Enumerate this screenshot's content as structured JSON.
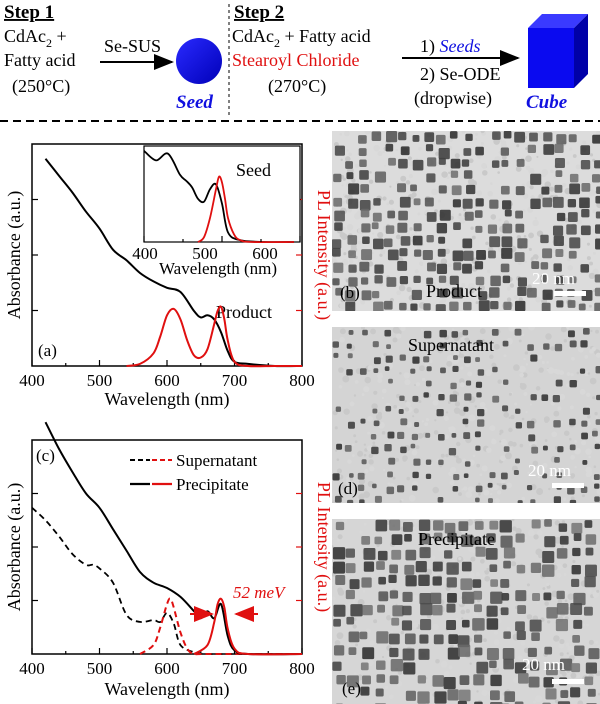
{
  "scheme": {
    "step1": {
      "title": "Step 1",
      "reagent_line1": "CdAc",
      "reagent_sub": "2",
      "reagent_plus": " +",
      "reagent_line2": "Fatty acid",
      "temperature": "(250°C)",
      "arrow_label": "Se-SUS",
      "product_label": "Seed",
      "product_color": "#1010e0"
    },
    "step2": {
      "title": "Step 2",
      "reagent_line1": "CdAc",
      "reagent_sub": "2",
      "reagent_plus": " + Fatty acid",
      "reagent_line2": "Stearoyl Chloride",
      "reagent_line2_color": "#e01010",
      "temperature": "(270°C)",
      "arrow_label1_prefix": "1) ",
      "arrow_label1_em": "Seeds",
      "arrow_label2": "2) Se-ODE",
      "arrow_label3": "(dropwise)",
      "product_label": "Cube",
      "product_color": "#1010e0"
    }
  },
  "panel_a": {
    "letter": "(a)",
    "ylabel_left": "Absorbance (a.u.)",
    "ylabel_right": "PL Intensity (a.u.)",
    "xlabel": "Wavelength (nm)",
    "annotation": "Product",
    "xticks": [
      "400",
      "500",
      "600",
      "700",
      "800"
    ],
    "inset": {
      "label": "Seed",
      "xlabel": "Wavelength (nm)",
      "xticks": [
        "400",
        "500",
        "600"
      ]
    }
  },
  "panel_c": {
    "letter": "(c)",
    "ylabel_left": "Absorbance (a.u.)",
    "ylabel_right": "PL Intensity (a.u.)",
    "xlabel": "Wavelength (nm)",
    "xticks": [
      "400",
      "500",
      "600",
      "700",
      "800"
    ],
    "legend": [
      "Supernatant",
      "Precipitate"
    ],
    "fwhm_label": "52 meV"
  },
  "tem_b": {
    "letter": "(b)",
    "label": "Product",
    "scale": "20 nm"
  },
  "tem_d": {
    "letter": "(d)",
    "label": "Supernatant",
    "scale": "20 nm"
  },
  "tem_e": {
    "letter": "(e)",
    "label": "Precipitate",
    "scale": "20 nm"
  },
  "chart_data": [
    {
      "type": "line",
      "panel": "a",
      "xlabel": "Wavelength (nm)",
      "ylabel": "Absorbance (a.u.) / PL Intensity (a.u.)",
      "xlim": [
        400,
        800
      ],
      "series": [
        {
          "name": "Absorbance (product)",
          "color": "#000000",
          "x": [
            420,
            440,
            460,
            480,
            500,
            520,
            540,
            560,
            580,
            600,
            620,
            640,
            650,
            660,
            670,
            680,
            690,
            700,
            720,
            760,
            800
          ],
          "y": [
            0.98,
            0.9,
            0.82,
            0.73,
            0.65,
            0.55,
            0.5,
            0.44,
            0.4,
            0.37,
            0.35,
            0.26,
            0.23,
            0.24,
            0.22,
            0.16,
            0.07,
            0.02,
            0.01,
            0.0,
            0.0
          ]
        },
        {
          "name": "PL (product)",
          "color": "#e01010",
          "x": [
            540,
            560,
            580,
            590,
            600,
            610,
            620,
            630,
            640,
            650,
            660,
            670,
            675,
            680,
            685,
            690,
            700,
            720,
            760,
            800
          ],
          "y": [
            0.0,
            0.01,
            0.06,
            0.14,
            0.24,
            0.27,
            0.22,
            0.12,
            0.05,
            0.04,
            0.08,
            0.2,
            0.26,
            0.28,
            0.22,
            0.12,
            0.02,
            0.0,
            0.0,
            0.0
          ]
        }
      ]
    },
    {
      "type": "line",
      "panel": "a-inset",
      "xlabel": "Wavelength (nm)",
      "xlim": [
        400,
        650
      ],
      "series": [
        {
          "name": "Absorbance (seed)",
          "color": "#000000",
          "x": [
            400,
            420,
            440,
            460,
            470,
            480,
            490,
            500,
            510,
            520,
            530,
            540,
            560,
            600,
            650
          ],
          "y": [
            0.95,
            0.85,
            0.92,
            0.7,
            0.64,
            0.57,
            0.45,
            0.42,
            0.55,
            0.6,
            0.4,
            0.1,
            0.02,
            0.0,
            0.0
          ]
        },
        {
          "name": "PL (seed)",
          "color": "#e01010",
          "x": [
            490,
            500,
            510,
            520,
            525,
            530,
            535,
            540,
            550,
            560,
            580,
            650
          ],
          "y": [
            0.0,
            0.05,
            0.25,
            0.55,
            0.68,
            0.62,
            0.45,
            0.25,
            0.08,
            0.02,
            0.0,
            0.0
          ]
        }
      ]
    },
    {
      "type": "line",
      "panel": "c",
      "xlabel": "Wavelength (nm)",
      "ylabel": "Absorbance (a.u.) / PL Intensity (a.u.)",
      "xlim": [
        400,
        800
      ],
      "series": [
        {
          "name": "Supernatant absorbance",
          "style": "dashed",
          "color": "#000000",
          "x": [
            400,
            420,
            440,
            460,
            480,
            490,
            500,
            520,
            540,
            560,
            580,
            590,
            600,
            610,
            620,
            640,
            660,
            700,
            800
          ],
          "y": [
            0.82,
            0.75,
            0.66,
            0.56,
            0.5,
            0.5,
            0.48,
            0.4,
            0.22,
            0.18,
            0.19,
            0.18,
            0.23,
            0.17,
            0.05,
            0.01,
            0.0,
            0.0,
            0.0
          ]
        },
        {
          "name": "Supernatant PL",
          "style": "dashed",
          "color": "#e01010",
          "x": [
            560,
            580,
            590,
            600,
            605,
            610,
            620,
            630,
            640,
            660,
            800
          ],
          "y": [
            0.0,
            0.05,
            0.15,
            0.28,
            0.31,
            0.26,
            0.12,
            0.03,
            0.0,
            0.0,
            0.0
          ]
        },
        {
          "name": "Precipitate absorbance",
          "style": "solid",
          "color": "#000000",
          "x": [
            420,
            440,
            460,
            480,
            500,
            520,
            540,
            560,
            580,
            600,
            620,
            640,
            650,
            660,
            670,
            680,
            690,
            700,
            720,
            800
          ],
          "y": [
            1.3,
            1.15,
            1.02,
            0.9,
            0.82,
            0.7,
            0.58,
            0.46,
            0.4,
            0.37,
            0.32,
            0.24,
            0.2,
            0.24,
            0.2,
            0.28,
            0.1,
            0.02,
            0.0,
            0.0
          ]
        },
        {
          "name": "Precipitate PL",
          "style": "solid",
          "color": "#e01010",
          "x": [
            640,
            660,
            670,
            675,
            680,
            685,
            690,
            700,
            720,
            800
          ],
          "y": [
            0.0,
            0.05,
            0.18,
            0.28,
            0.31,
            0.26,
            0.14,
            0.03,
            0.0,
            0.0
          ]
        }
      ]
    }
  ]
}
